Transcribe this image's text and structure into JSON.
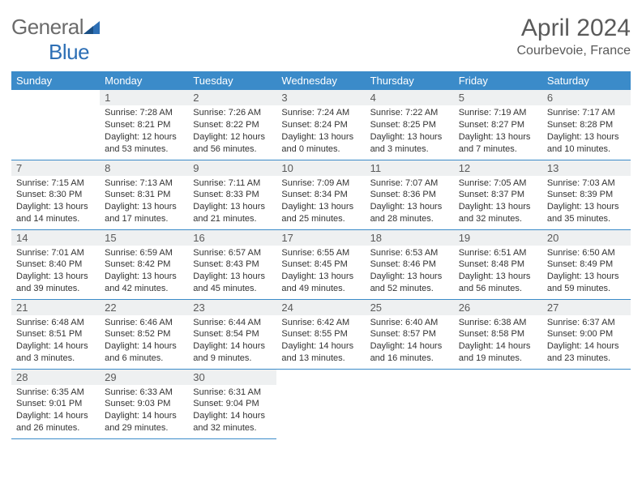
{
  "logo": {
    "general": "General",
    "blue": "Blue"
  },
  "title": "April 2024",
  "location": "Courbevoie, France",
  "colors": {
    "header_bg": "#3b8bc9",
    "header_text": "#ffffff",
    "daynum_bg": "#eef0f1",
    "border": "#3b8bc9",
    "logo_gray": "#6b6b6b",
    "logo_blue": "#2d6fb5"
  },
  "weekdays": [
    "Sunday",
    "Monday",
    "Tuesday",
    "Wednesday",
    "Thursday",
    "Friday",
    "Saturday"
  ],
  "weeks": [
    [
      null,
      {
        "n": "1",
        "sr": "7:28 AM",
        "ss": "8:21 PM",
        "dl": "12 hours and 53 minutes."
      },
      {
        "n": "2",
        "sr": "7:26 AM",
        "ss": "8:22 PM",
        "dl": "12 hours and 56 minutes."
      },
      {
        "n": "3",
        "sr": "7:24 AM",
        "ss": "8:24 PM",
        "dl": "13 hours and 0 minutes."
      },
      {
        "n": "4",
        "sr": "7:22 AM",
        "ss": "8:25 PM",
        "dl": "13 hours and 3 minutes."
      },
      {
        "n": "5",
        "sr": "7:19 AM",
        "ss": "8:27 PM",
        "dl": "13 hours and 7 minutes."
      },
      {
        "n": "6",
        "sr": "7:17 AM",
        "ss": "8:28 PM",
        "dl": "13 hours and 10 minutes."
      }
    ],
    [
      {
        "n": "7",
        "sr": "7:15 AM",
        "ss": "8:30 PM",
        "dl": "13 hours and 14 minutes."
      },
      {
        "n": "8",
        "sr": "7:13 AM",
        "ss": "8:31 PM",
        "dl": "13 hours and 17 minutes."
      },
      {
        "n": "9",
        "sr": "7:11 AM",
        "ss": "8:33 PM",
        "dl": "13 hours and 21 minutes."
      },
      {
        "n": "10",
        "sr": "7:09 AM",
        "ss": "8:34 PM",
        "dl": "13 hours and 25 minutes."
      },
      {
        "n": "11",
        "sr": "7:07 AM",
        "ss": "8:36 PM",
        "dl": "13 hours and 28 minutes."
      },
      {
        "n": "12",
        "sr": "7:05 AM",
        "ss": "8:37 PM",
        "dl": "13 hours and 32 minutes."
      },
      {
        "n": "13",
        "sr": "7:03 AM",
        "ss": "8:39 PM",
        "dl": "13 hours and 35 minutes."
      }
    ],
    [
      {
        "n": "14",
        "sr": "7:01 AM",
        "ss": "8:40 PM",
        "dl": "13 hours and 39 minutes."
      },
      {
        "n": "15",
        "sr": "6:59 AM",
        "ss": "8:42 PM",
        "dl": "13 hours and 42 minutes."
      },
      {
        "n": "16",
        "sr": "6:57 AM",
        "ss": "8:43 PM",
        "dl": "13 hours and 45 minutes."
      },
      {
        "n": "17",
        "sr": "6:55 AM",
        "ss": "8:45 PM",
        "dl": "13 hours and 49 minutes."
      },
      {
        "n": "18",
        "sr": "6:53 AM",
        "ss": "8:46 PM",
        "dl": "13 hours and 52 minutes."
      },
      {
        "n": "19",
        "sr": "6:51 AM",
        "ss": "8:48 PM",
        "dl": "13 hours and 56 minutes."
      },
      {
        "n": "20",
        "sr": "6:50 AM",
        "ss": "8:49 PM",
        "dl": "13 hours and 59 minutes."
      }
    ],
    [
      {
        "n": "21",
        "sr": "6:48 AM",
        "ss": "8:51 PM",
        "dl": "14 hours and 3 minutes."
      },
      {
        "n": "22",
        "sr": "6:46 AM",
        "ss": "8:52 PM",
        "dl": "14 hours and 6 minutes."
      },
      {
        "n": "23",
        "sr": "6:44 AM",
        "ss": "8:54 PM",
        "dl": "14 hours and 9 minutes."
      },
      {
        "n": "24",
        "sr": "6:42 AM",
        "ss": "8:55 PM",
        "dl": "14 hours and 13 minutes."
      },
      {
        "n": "25",
        "sr": "6:40 AM",
        "ss": "8:57 PM",
        "dl": "14 hours and 16 minutes."
      },
      {
        "n": "26",
        "sr": "6:38 AM",
        "ss": "8:58 PM",
        "dl": "14 hours and 19 minutes."
      },
      {
        "n": "27",
        "sr": "6:37 AM",
        "ss": "9:00 PM",
        "dl": "14 hours and 23 minutes."
      }
    ],
    [
      {
        "n": "28",
        "sr": "6:35 AM",
        "ss": "9:01 PM",
        "dl": "14 hours and 26 minutes."
      },
      {
        "n": "29",
        "sr": "6:33 AM",
        "ss": "9:03 PM",
        "dl": "14 hours and 29 minutes."
      },
      {
        "n": "30",
        "sr": "6:31 AM",
        "ss": "9:04 PM",
        "dl": "14 hours and 32 minutes."
      },
      null,
      null,
      null,
      null
    ]
  ],
  "labels": {
    "sunrise": "Sunrise:",
    "sunset": "Sunset:",
    "daylight": "Daylight:"
  }
}
